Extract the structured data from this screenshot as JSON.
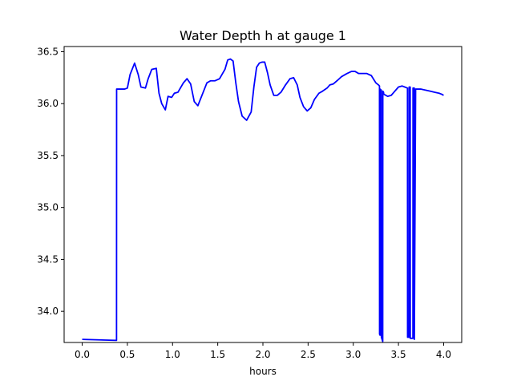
{
  "chart_data": {
    "type": "line",
    "title": "Water Depth h at gauge 1",
    "xlabel": "hours",
    "ylabel": "",
    "xlim": [
      -0.2,
      4.2
    ],
    "ylim": [
      33.7,
      36.55
    ],
    "xticks": [
      0.0,
      0.5,
      1.0,
      1.5,
      2.0,
      2.5,
      3.0,
      3.5,
      4.0
    ],
    "xtick_labels": [
      "0.0",
      "0.5",
      "1.0",
      "1.5",
      "2.0",
      "2.5",
      "3.0",
      "3.5",
      "4.0"
    ],
    "yticks": [
      34.0,
      34.5,
      35.0,
      35.5,
      36.0,
      36.5
    ],
    "ytick_labels": [
      "34.0",
      "34.5",
      "35.0",
      "35.5",
      "36.0",
      "36.5"
    ],
    "grid": false,
    "legend": "none",
    "colors": {
      "series": "#0000ff",
      "axes": "#000000",
      "background": "#ffffff"
    },
    "series": [
      {
        "x": [
          0.0,
          0.38,
          0.381,
          0.47,
          0.5,
          0.53,
          0.58,
          0.62,
          0.65,
          0.7,
          0.73,
          0.77,
          0.82,
          0.85,
          0.88,
          0.92,
          0.95,
          0.99,
          1.02,
          1.06,
          1.12,
          1.16,
          1.2,
          1.24,
          1.28,
          1.33,
          1.38,
          1.42,
          1.47,
          1.52,
          1.58,
          1.61,
          1.64,
          1.67,
          1.7,
          1.73,
          1.77,
          1.82,
          1.87,
          1.9,
          1.93,
          1.96,
          1.99,
          2.02,
          2.05,
          2.08,
          2.12,
          2.16,
          2.2,
          2.25,
          2.3,
          2.34,
          2.38,
          2.41,
          2.45,
          2.49,
          2.53,
          2.57,
          2.62,
          2.66,
          2.71,
          2.74,
          2.78,
          2.82,
          2.87,
          2.93,
          2.98,
          3.02,
          3.06,
          3.1,
          3.15,
          3.2,
          3.25,
          3.28,
          3.29,
          3.291,
          3.296,
          3.297,
          3.31,
          3.311,
          3.326,
          3.327,
          3.335,
          3.336,
          3.34,
          3.38,
          3.42,
          3.46,
          3.5,
          3.54,
          3.57,
          3.6,
          3.601,
          3.617,
          3.618,
          3.63,
          3.631,
          3.66,
          3.661,
          3.675,
          3.676,
          3.69,
          3.75,
          3.8,
          3.85,
          3.9,
          3.95,
          3.98,
          4.0
        ],
        "y": [
          33.73,
          33.72,
          36.14,
          36.14,
          36.15,
          36.28,
          36.39,
          36.28,
          36.16,
          36.15,
          36.24,
          36.33,
          36.34,
          36.1,
          36.0,
          35.94,
          36.07,
          36.06,
          36.1,
          36.11,
          36.2,
          36.24,
          36.19,
          36.02,
          35.98,
          36.09,
          36.2,
          36.22,
          36.22,
          36.24,
          36.33,
          36.42,
          36.43,
          36.41,
          36.2,
          36.02,
          35.88,
          35.84,
          35.92,
          36.16,
          36.35,
          36.39,
          36.4,
          36.4,
          36.3,
          36.18,
          36.08,
          36.08,
          36.11,
          36.18,
          36.24,
          36.25,
          36.18,
          36.06,
          35.97,
          35.93,
          35.96,
          36.04,
          36.1,
          36.12,
          36.15,
          36.18,
          36.19,
          36.22,
          36.26,
          36.29,
          36.31,
          36.31,
          36.29,
          36.29,
          36.29,
          36.27,
          36.2,
          36.18,
          36.17,
          33.78,
          33.77,
          36.14,
          36.13,
          33.75,
          33.71,
          36.12,
          36.11,
          36.1,
          36.09,
          36.07,
          36.08,
          36.12,
          36.16,
          36.17,
          36.16,
          36.15,
          33.75,
          33.75,
          36.16,
          36.16,
          33.74,
          33.74,
          36.15,
          36.15,
          33.73,
          36.14,
          36.14,
          36.13,
          36.12,
          36.11,
          36.1,
          36.09,
          36.08
        ]
      }
    ]
  }
}
